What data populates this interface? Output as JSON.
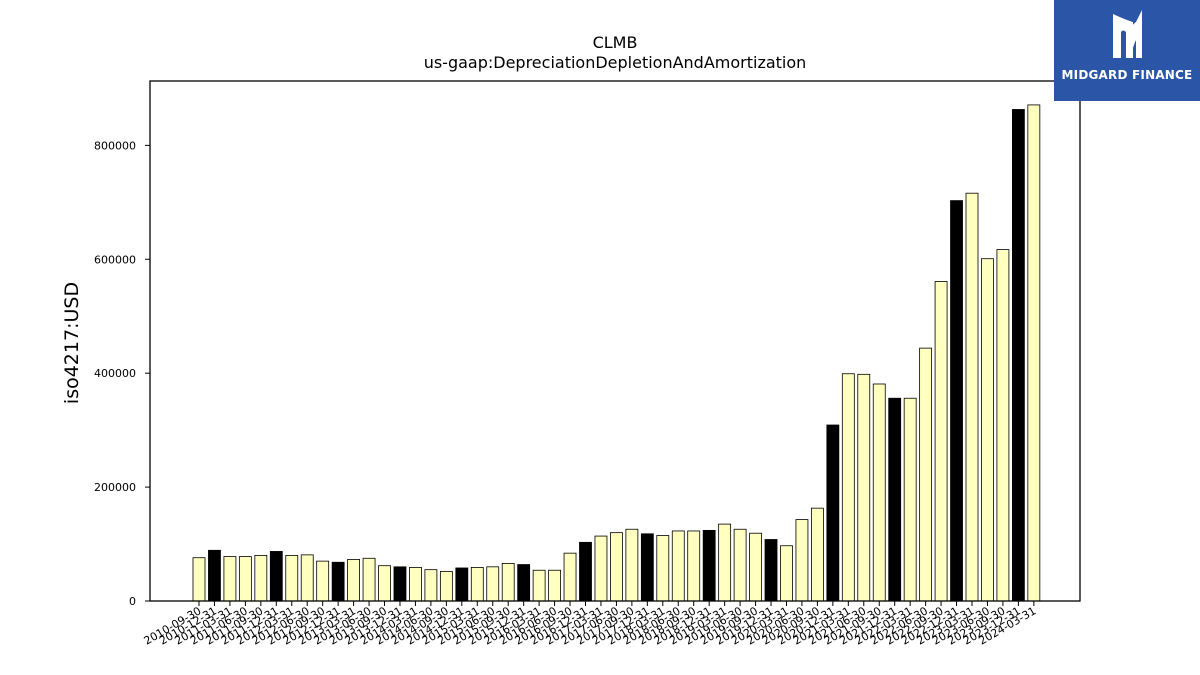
{
  "chart_data": {
    "type": "bar",
    "title": "CLMB",
    "subtitle": "us-gaap:DepreciationDepletionAndAmortization",
    "xlabel": "",
    "ylabel": "iso4217:USD",
    "ylim": [
      0,
      913000
    ],
    "yticks": [
      0,
      200000,
      400000,
      600000,
      800000
    ],
    "grid": false,
    "colors": {
      "light": "#ffffc0",
      "dark": "#000000",
      "edge": "#000000"
    },
    "categories": [
      "2010-09-30",
      "2010-12-31",
      "2011-03-31",
      "2011-06-30",
      "2011-09-30",
      "2011-12-31",
      "2012-03-31",
      "2012-06-30",
      "2012-09-30",
      "2012-12-31",
      "2013-03-31",
      "2013-06-30",
      "2013-09-30",
      "2013-12-31",
      "2014-03-31",
      "2014-06-30",
      "2014-09-30",
      "2014-12-31",
      "2015-03-31",
      "2015-06-30",
      "2015-09-30",
      "2015-12-31",
      "2016-03-31",
      "2016-06-30",
      "2016-09-30",
      "2016-12-31",
      "2017-03-31",
      "2017-06-30",
      "2017-09-30",
      "2017-12-31",
      "2018-03-31",
      "2018-06-30",
      "2018-09-30",
      "2018-12-31",
      "2019-03-31",
      "2019-06-30",
      "2019-09-30",
      "2019-12-31",
      "2020-03-31",
      "2020-06-30",
      "2020-09-30",
      "2020-12-31",
      "2021-03-31",
      "2021-06-30",
      "2021-09-30",
      "2021-12-31",
      "2022-03-31",
      "2022-06-30",
      "2022-09-30",
      "2022-12-31",
      "2023-03-31",
      "2023-06-30",
      "2023-09-30",
      "2023-12-31",
      "2024-03-31"
    ],
    "values": [
      76000,
      89000,
      78000,
      78000,
      80000,
      87000,
      80000,
      81000,
      70000,
      68000,
      73000,
      75000,
      62000,
      60000,
      59000,
      55000,
      52000,
      58000,
      59000,
      60000,
      66000,
      64000,
      54000,
      54000,
      84000,
      103000,
      114000,
      120000,
      126000,
      118000,
      115000,
      123000,
      123000,
      124000,
      135000,
      126000,
      119000,
      108000,
      97000,
      143000,
      163000,
      309000,
      399000,
      398000,
      381000,
      356000,
      356000,
      444000,
      561000,
      703000,
      716000,
      601000,
      617000,
      863000,
      871000
    ],
    "dark_flags": [
      0,
      1,
      0,
      0,
      0,
      1,
      0,
      0,
      0,
      1,
      0,
      0,
      0,
      1,
      0,
      0,
      0,
      1,
      0,
      0,
      0,
      1,
      0,
      0,
      0,
      1,
      0,
      0,
      0,
      1,
      0,
      0,
      0,
      1,
      0,
      0,
      0,
      1,
      0,
      0,
      0,
      1,
      0,
      0,
      0,
      1,
      0,
      0,
      0,
      1,
      0,
      0,
      0,
      1,
      0
    ]
  },
  "logo": {
    "text": "MIDGARD FINANCE",
    "color": "#2b56a8"
  }
}
